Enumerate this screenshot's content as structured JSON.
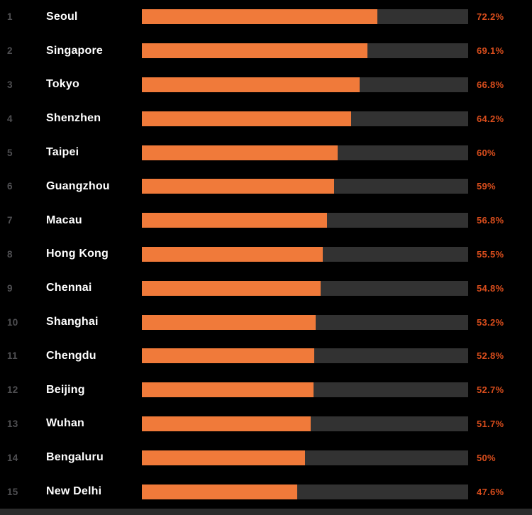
{
  "chart_data": {
    "type": "bar",
    "orientation": "horizontal",
    "title": "",
    "xlabel": "",
    "ylabel": "",
    "xlim": [
      0,
      100
    ],
    "grid": false,
    "legend": false,
    "categories": [
      "Seoul",
      "Singapore",
      "Tokyo",
      "Shenzhen",
      "Taipei",
      "Guangzhou",
      "Macau",
      "Hong Kong",
      "Chennai",
      "Shanghai",
      "Chengdu",
      "Beijing",
      "Wuhan",
      "Bengaluru",
      "New Delhi"
    ],
    "ranks": [
      "1",
      "2",
      "3",
      "4",
      "5",
      "6",
      "7",
      "8",
      "9",
      "10",
      "11",
      "12",
      "13",
      "14",
      "15"
    ],
    "values": [
      72.2,
      69.1,
      66.8,
      64.2,
      60,
      59,
      56.8,
      55.5,
      54.8,
      53.2,
      52.8,
      52.7,
      51.7,
      50,
      47.6
    ],
    "value_labels": [
      "72.2%",
      "69.1%",
      "66.8%",
      "64.2%",
      "60%",
      "59%",
      "56.8%",
      "55.5%",
      "54.8%",
      "53.2%",
      "52.8%",
      "52.7%",
      "51.7%",
      "50%",
      "47.6%"
    ]
  },
  "colors": {
    "background": "#000000",
    "bar_fill": "#F07A3A",
    "bar_track": "#323232",
    "rank_text": "#4f4f52",
    "city_text": "#ffffff",
    "percent_text": "#d94d1c",
    "bottom_strip": "#2b2b2b"
  }
}
